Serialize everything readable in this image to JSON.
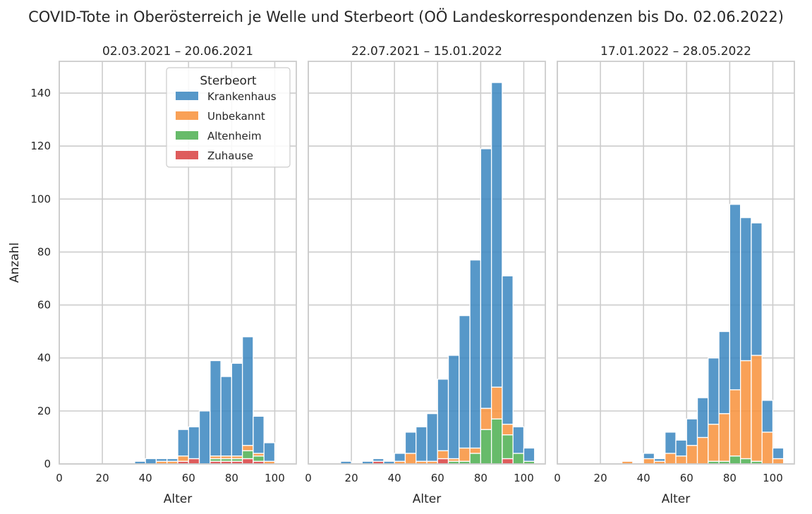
{
  "title": "COVID-Tote in Oberösterreich je Welle und Sterbeort (OÖ Landeskorrespondenzen bis Do. 02.06.2022)",
  "chart_data": {
    "type": "bar",
    "stacked": true,
    "shared_y": true,
    "ylabel": "Anzahl",
    "ylim": [
      0,
      152
    ],
    "yticks": [
      0,
      20,
      40,
      60,
      80,
      100,
      120,
      140
    ],
    "xlabel": "Alter",
    "xlim": [
      0,
      110
    ],
    "xticks": [
      0,
      20,
      40,
      60,
      80,
      100
    ],
    "bin_width": 5,
    "grid": true,
    "legend": {
      "title": "Sterbeort",
      "placement": "upper right of first panel",
      "entries": [
        "Krankenhaus",
        "Unbekannt",
        "Altenheim",
        "Zuhause"
      ]
    },
    "colors": {
      "Krankenhaus": "#3a86bf",
      "Unbekannt": "#f8903a",
      "Altenheim": "#4caf50",
      "Zuhause": "#d84040"
    },
    "panels": [
      {
        "title": "02.03.2021 – 20.06.2021",
        "bins": [
          {
            "x": 35,
            "Zuhause": 0,
            "Altenheim": 0,
            "Unbekannt": 0,
            "Krankenhaus": 1
          },
          {
            "x": 40,
            "Zuhause": 0,
            "Altenheim": 0,
            "Unbekannt": 0,
            "Krankenhaus": 2
          },
          {
            "x": 45,
            "Zuhause": 0,
            "Altenheim": 0,
            "Unbekannt": 1,
            "Krankenhaus": 1
          },
          {
            "x": 50,
            "Zuhause": 0,
            "Altenheim": 0,
            "Unbekannt": 1,
            "Krankenhaus": 1
          },
          {
            "x": 55,
            "Zuhause": 1,
            "Altenheim": 0,
            "Unbekannt": 2,
            "Krankenhaus": 10
          },
          {
            "x": 60,
            "Zuhause": 2,
            "Altenheim": 0,
            "Unbekannt": 0,
            "Krankenhaus": 12
          },
          {
            "x": 65,
            "Zuhause": 0,
            "Altenheim": 0,
            "Unbekannt": 0,
            "Krankenhaus": 20
          },
          {
            "x": 70,
            "Zuhause": 1,
            "Altenheim": 1,
            "Unbekannt": 1,
            "Krankenhaus": 36
          },
          {
            "x": 75,
            "Zuhause": 1,
            "Altenheim": 1,
            "Unbekannt": 1,
            "Krankenhaus": 30
          },
          {
            "x": 80,
            "Zuhause": 1,
            "Altenheim": 1,
            "Unbekannt": 1,
            "Krankenhaus": 35
          },
          {
            "x": 85,
            "Zuhause": 2,
            "Altenheim": 3,
            "Unbekannt": 2,
            "Krankenhaus": 41
          },
          {
            "x": 90,
            "Zuhause": 1,
            "Altenheim": 2,
            "Unbekannt": 1,
            "Krankenhaus": 14
          },
          {
            "x": 95,
            "Zuhause": 0,
            "Altenheim": 0,
            "Unbekannt": 1,
            "Krankenhaus": 7
          }
        ]
      },
      {
        "title": "22.07.2021 – 15.01.2022",
        "bins": [
          {
            "x": 15,
            "Zuhause": 0,
            "Altenheim": 0,
            "Unbekannt": 0,
            "Krankenhaus": 1
          },
          {
            "x": 25,
            "Zuhause": 0,
            "Altenheim": 0,
            "Unbekannt": 0,
            "Krankenhaus": 1
          },
          {
            "x": 30,
            "Zuhause": 1,
            "Altenheim": 0,
            "Unbekannt": 0,
            "Krankenhaus": 1
          },
          {
            "x": 35,
            "Zuhause": 0,
            "Altenheim": 0,
            "Unbekannt": 0,
            "Krankenhaus": 1
          },
          {
            "x": 40,
            "Zuhause": 0,
            "Altenheim": 0,
            "Unbekannt": 1,
            "Krankenhaus": 3
          },
          {
            "x": 45,
            "Zuhause": 0,
            "Altenheim": 0,
            "Unbekannt": 4,
            "Krankenhaus": 8
          },
          {
            "x": 50,
            "Zuhause": 0,
            "Altenheim": 0,
            "Unbekannt": 1,
            "Krankenhaus": 13
          },
          {
            "x": 55,
            "Zuhause": 0,
            "Altenheim": 0,
            "Unbekannt": 1,
            "Krankenhaus": 18
          },
          {
            "x": 60,
            "Zuhause": 2,
            "Altenheim": 0,
            "Unbekannt": 3,
            "Krankenhaus": 27
          },
          {
            "x": 65,
            "Zuhause": 0,
            "Altenheim": 1,
            "Unbekannt": 1,
            "Krankenhaus": 39
          },
          {
            "x": 70,
            "Zuhause": 0,
            "Altenheim": 1,
            "Unbekannt": 5,
            "Krankenhaus": 50
          },
          {
            "x": 75,
            "Zuhause": 0,
            "Altenheim": 4,
            "Unbekannt": 2,
            "Krankenhaus": 71
          },
          {
            "x": 80,
            "Zuhause": 0,
            "Altenheim": 13,
            "Unbekannt": 8,
            "Krankenhaus": 98
          },
          {
            "x": 85,
            "Zuhause": 0,
            "Altenheim": 17,
            "Unbekannt": 12,
            "Krankenhaus": 115
          },
          {
            "x": 90,
            "Zuhause": 2,
            "Altenheim": 9,
            "Unbekannt": 4,
            "Krankenhaus": 56
          },
          {
            "x": 95,
            "Zuhause": 0,
            "Altenheim": 4,
            "Unbekannt": 0,
            "Krankenhaus": 10
          },
          {
            "x": 100,
            "Zuhause": 0,
            "Altenheim": 1,
            "Unbekannt": 0,
            "Krankenhaus": 5
          }
        ]
      },
      {
        "title": "17.01.2022 – 28.05.2022",
        "bins": [
          {
            "x": 30,
            "Zuhause": 0,
            "Altenheim": 0,
            "Unbekannt": 1,
            "Krankenhaus": 0
          },
          {
            "x": 40,
            "Zuhause": 0,
            "Altenheim": 0,
            "Unbekannt": 2,
            "Krankenhaus": 2
          },
          {
            "x": 45,
            "Zuhause": 0,
            "Altenheim": 0,
            "Unbekannt": 1,
            "Krankenhaus": 1
          },
          {
            "x": 50,
            "Zuhause": 0,
            "Altenheim": 0,
            "Unbekannt": 4,
            "Krankenhaus": 8
          },
          {
            "x": 55,
            "Zuhause": 0,
            "Altenheim": 0,
            "Unbekannt": 3,
            "Krankenhaus": 6
          },
          {
            "x": 60,
            "Zuhause": 0,
            "Altenheim": 0,
            "Unbekannt": 7,
            "Krankenhaus": 10
          },
          {
            "x": 65,
            "Zuhause": 0,
            "Altenheim": 0,
            "Unbekannt": 10,
            "Krankenhaus": 15
          },
          {
            "x": 70,
            "Zuhause": 0,
            "Altenheim": 1,
            "Unbekannt": 14,
            "Krankenhaus": 25
          },
          {
            "x": 75,
            "Zuhause": 0,
            "Altenheim": 1,
            "Unbekannt": 18,
            "Krankenhaus": 31
          },
          {
            "x": 80,
            "Zuhause": 0,
            "Altenheim": 3,
            "Unbekannt": 25,
            "Krankenhaus": 70
          },
          {
            "x": 85,
            "Zuhause": 0,
            "Altenheim": 2,
            "Unbekannt": 37,
            "Krankenhaus": 54
          },
          {
            "x": 90,
            "Zuhause": 0,
            "Altenheim": 1,
            "Unbekannt": 40,
            "Krankenhaus": 50
          },
          {
            "x": 95,
            "Zuhause": 0,
            "Altenheim": 0,
            "Unbekannt": 12,
            "Krankenhaus": 12
          },
          {
            "x": 100,
            "Zuhause": 0,
            "Altenheim": 0,
            "Unbekannt": 2,
            "Krankenhaus": 4
          }
        ]
      }
    ]
  }
}
